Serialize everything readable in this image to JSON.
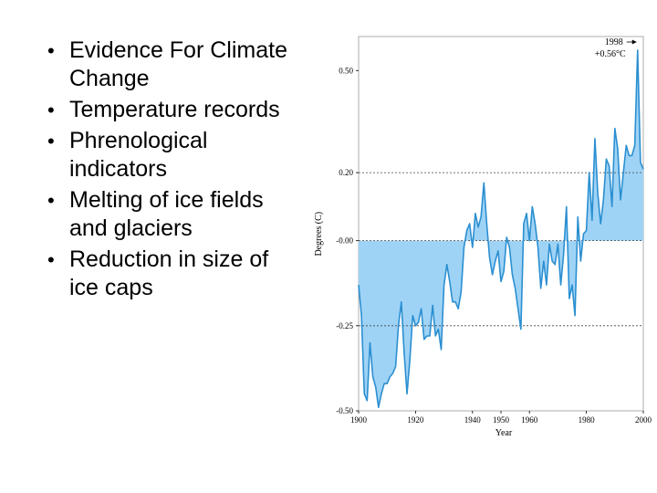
{
  "slide": {
    "bullets": [
      "Evidence For Climate Change",
      "Temperature records",
      "Phrenological indicators",
      "Melting of ice fields and glaciers",
      "Reduction in size of ice caps"
    ]
  },
  "colors": {
    "fill": "#9fd3f5",
    "line": "#2b8fd1"
  },
  "chart_data": {
    "type": "area",
    "title": "",
    "xlabel": "Year",
    "ylabel": "Degrees (C)",
    "xlim": [
      1900,
      2000
    ],
    "ylim": [
      -0.5,
      0.6
    ],
    "x_ticks": [
      1900,
      1920,
      1940,
      1950,
      1960,
      1980,
      2000
    ],
    "x_tick_labels": [
      "1900",
      "1920",
      "1940",
      "1950",
      "1960",
      "1980",
      "2000"
    ],
    "y_ticks": [
      0.5,
      0.2,
      0.0,
      -0.25,
      -0.5
    ],
    "y_tick_labels": [
      "0.50",
      "0.20",
      "-0.00",
      "-0.25",
      "-0.50"
    ],
    "reference_lines": [
      0.2,
      0.0,
      -0.25
    ],
    "annotation": {
      "x": 1998,
      "y": 0.56,
      "line1": "1998",
      "line2": "+0.56°C"
    },
    "x": [
      1900,
      1901,
      1902,
      1903,
      1904,
      1905,
      1906,
      1907,
      1908,
      1909,
      1910,
      1911,
      1912,
      1913,
      1914,
      1915,
      1916,
      1917,
      1918,
      1919,
      1920,
      1921,
      1922,
      1923,
      1924,
      1925,
      1926,
      1927,
      1928,
      1929,
      1930,
      1931,
      1932,
      1933,
      1934,
      1935,
      1936,
      1937,
      1938,
      1939,
      1940,
      1941,
      1942,
      1943,
      1944,
      1945,
      1946,
      1947,
      1948,
      1949,
      1950,
      1951,
      1952,
      1953,
      1954,
      1955,
      1956,
      1957,
      1958,
      1959,
      1960,
      1961,
      1962,
      1963,
      1964,
      1965,
      1966,
      1967,
      1968,
      1969,
      1970,
      1971,
      1972,
      1973,
      1974,
      1975,
      1976,
      1977,
      1978,
      1979,
      1980,
      1981,
      1982,
      1983,
      1984,
      1985,
      1986,
      1987,
      1988,
      1989,
      1990,
      1991,
      1992,
      1993,
      1994,
      1995,
      1996,
      1997,
      1998,
      1999,
      2000
    ],
    "values": [
      -0.13,
      -0.22,
      -0.45,
      -0.47,
      -0.3,
      -0.4,
      -0.43,
      -0.49,
      -0.45,
      -0.42,
      -0.42,
      -0.4,
      -0.39,
      -0.37,
      -0.25,
      -0.18,
      -0.33,
      -0.45,
      -0.35,
      -0.22,
      -0.25,
      -0.24,
      -0.2,
      -0.29,
      -0.28,
      -0.28,
      -0.19,
      -0.28,
      -0.26,
      -0.32,
      -0.13,
      -0.07,
      -0.12,
      -0.18,
      -0.18,
      -0.2,
      -0.15,
      -0.02,
      0.03,
      0.05,
      -0.02,
      0.08,
      0.04,
      0.07,
      0.17,
      0.05,
      -0.05,
      -0.1,
      -0.06,
      -0.03,
      -0.12,
      -0.09,
      0.01,
      -0.02,
      -0.1,
      -0.14,
      -0.2,
      -0.26,
      0.05,
      0.08,
      0.0,
      0.1,
      0.05,
      -0.02,
      -0.14,
      -0.06,
      -0.13,
      -0.01,
      -0.06,
      -0.07,
      -0.01,
      -0.13,
      -0.04,
      0.1,
      -0.17,
      -0.13,
      -0.22,
      0.07,
      -0.06,
      0.02,
      0.03,
      0.2,
      0.06,
      0.3,
      0.14,
      0.05,
      0.12,
      0.24,
      0.22,
      0.1,
      0.33,
      0.27,
      0.12,
      0.2,
      0.28,
      0.25,
      0.25,
      0.28,
      0.56,
      0.23,
      0.21
    ]
  }
}
